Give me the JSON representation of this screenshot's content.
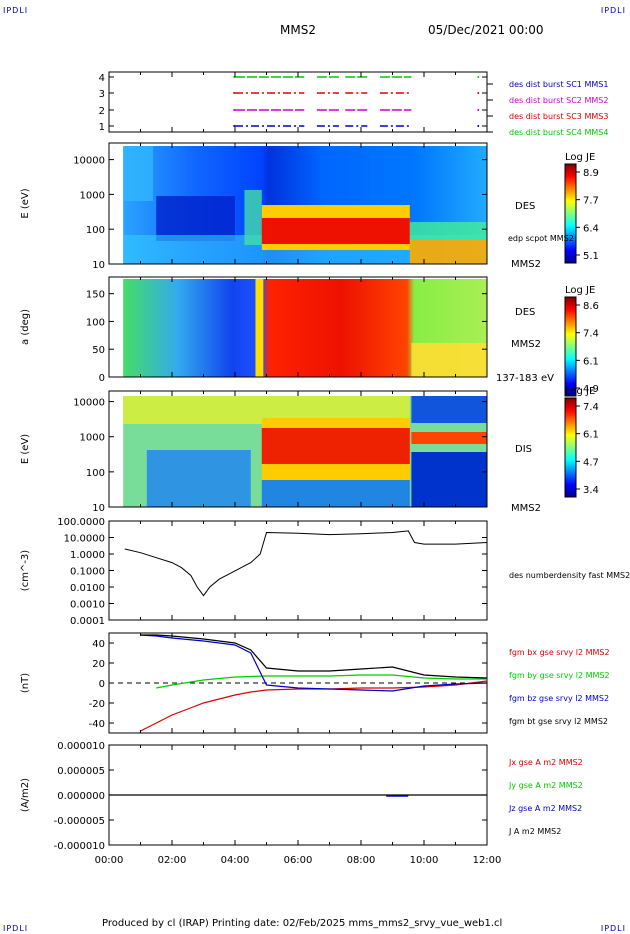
{
  "corners": {
    "tl": "IPDLI",
    "tr": "IPDLI",
    "bl": "IPDLI",
    "br": "IPDLI"
  },
  "header": {
    "spacecraft": "MMS2",
    "datetime": "05/Dec/2021 00:00"
  },
  "footer": {
    "text": "Produced by cl (IRAP)   Printing date: 02/Feb/2025   mms_mms2_srvy_vue_web1.cl"
  },
  "colors": {
    "blue": "#0000cc",
    "magenta": "#cc00cc",
    "red": "#dd0000",
    "green": "#00cc00",
    "black": "#000000"
  },
  "chart_data": [
    {
      "type": "timeline",
      "id": "burst",
      "yticks": [
        "4",
        "3",
        "2",
        "1"
      ],
      "legend": [
        {
          "label": "des dist burst SC1 MMS1",
          "color": "#0000cc"
        },
        {
          "label": "des dist burst SC2 MMS2",
          "color": "#cc00cc"
        },
        {
          "label": "des dist burst SC3 MMS3",
          "color": "#dd0000"
        },
        {
          "label": "des dist burst SC4 MMS4",
          "color": "#00cc00"
        }
      ],
      "segments_hours": [
        [
          4.0,
          6.2
        ],
        [
          6.6,
          7.3
        ],
        [
          7.5,
          8.2
        ],
        [
          8.6,
          9.6
        ]
      ]
    },
    {
      "type": "heatmap",
      "id": "des_energy",
      "ylabel": "E (eV)",
      "yticks": [
        "10000",
        "1000",
        "100",
        "10"
      ],
      "ylim": [
        10,
        30000
      ],
      "side_labels": [
        "DES",
        "edp scpot MMS2",
        "MMS2"
      ],
      "colorbar": {
        "title": "Log JE",
        "ticks": [
          "8.9",
          "7.7",
          "6.4",
          "5.1"
        ],
        "min": 5.1,
        "max": 8.9
      }
    },
    {
      "type": "heatmap",
      "id": "des_pitch",
      "ylabel": "a (deg)",
      "yticks": [
        "150",
        "100",
        "50",
        "0"
      ],
      "ylim": [
        0,
        180
      ],
      "side_labels": [
        "DES",
        "MMS2",
        "137-183 eV"
      ],
      "colorbar": {
        "title": "Log JE",
        "ticks": [
          "8.6",
          "7.4",
          "6.1",
          "4.9"
        ],
        "min": 4.9,
        "max": 8.6
      }
    },
    {
      "type": "heatmap",
      "id": "dis_energy",
      "ylabel": "E (eV)",
      "yticks": [
        "10000",
        "1000",
        "100",
        "10"
      ],
      "ylim": [
        10,
        20000
      ],
      "side_labels": [
        "DIS",
        "MMS2"
      ],
      "colorbar": {
        "title": "Log JE",
        "ticks": [
          "7.4",
          "6.1",
          "4.7",
          "3.4"
        ],
        "min": 3.4,
        "max": 7.4
      }
    },
    {
      "type": "line",
      "id": "density",
      "ylabel": "(cm^-3)",
      "yticks": [
        "100.0000",
        "10.0000",
        "1.0000",
        "0.1000",
        "0.0100",
        "0.0010",
        "0.0001"
      ],
      "ylim": [
        0.0001,
        100
      ],
      "scale": "log",
      "series": [
        {
          "name": "des numberdensity fast MMS2",
          "color": "#000000",
          "x": [
            0.5,
            1.0,
            1.5,
            2.0,
            2.3,
            2.6,
            2.8,
            3.0,
            3.2,
            3.5,
            3.8,
            4.2,
            4.5,
            4.8,
            5.0,
            6.0,
            7.0,
            8.0,
            9.0,
            9.5,
            9.7,
            10.0,
            11.0,
            12.0
          ],
          "y": [
            2.0,
            1.2,
            0.6,
            0.3,
            0.15,
            0.05,
            0.01,
            0.003,
            0.01,
            0.03,
            0.06,
            0.15,
            0.3,
            1.0,
            20,
            18,
            15,
            17,
            20,
            25,
            5,
            4,
            4,
            5
          ]
        }
      ]
    },
    {
      "type": "line",
      "id": "magnetic",
      "ylabel": "(nT)",
      "yticks": [
        "40",
        "20",
        "0",
        "-20",
        "-40"
      ],
      "ylim": [
        -50,
        50
      ],
      "series": [
        {
          "name": "fgm bx gse srvy l2 MMS2",
          "color": "#dd0000",
          "x": [
            1.0,
            1.5,
            2.0,
            2.5,
            3.0,
            3.5,
            4.0,
            4.5,
            5.0,
            6.0,
            7.0,
            8.0,
            9.0,
            10.0,
            11.0,
            12.0
          ],
          "y": [
            -48,
            -40,
            -32,
            -26,
            -20,
            -16,
            -12,
            -9,
            -7,
            -6,
            -6,
            -5,
            -5,
            -4,
            -2,
            2
          ]
        },
        {
          "name": "fgm by gse srvy l2 MMS2",
          "color": "#00cc00",
          "x": [
            1.5,
            2.0,
            3.0,
            4.0,
            5.0,
            6.0,
            7.0,
            8.0,
            9.0,
            10.0,
            11.0,
            12.0
          ],
          "y": [
            -5,
            -2,
            3,
            6,
            7,
            7,
            7,
            8,
            8,
            5,
            4,
            4
          ]
        },
        {
          "name": "fgm bz gse srvy l2 MMS2",
          "color": "#0000cc",
          "x": [
            1.0,
            1.5,
            2.0,
            3.0,
            4.0,
            4.5,
            5.0,
            6.0,
            7.0,
            8.0,
            9.0,
            10.0,
            11.0,
            12.0
          ],
          "y": [
            48,
            47,
            45,
            42,
            38,
            30,
            -2,
            -5,
            -6,
            -7,
            -8,
            -3,
            -1,
            0
          ]
        },
        {
          "name": "fgm bt gse srvy l2 MMS2",
          "color": "#000000",
          "x": [
            1.0,
            1.5,
            2.0,
            3.0,
            4.0,
            4.5,
            5.0,
            6.0,
            7.0,
            8.0,
            9.0,
            10.0,
            11.0,
            12.0
          ],
          "y": [
            48,
            48,
            47,
            44,
            40,
            33,
            15,
            12,
            12,
            14,
            16,
            8,
            6,
            5
          ]
        }
      ]
    },
    {
      "type": "line",
      "id": "current",
      "ylabel": "(A/m2)",
      "yticks": [
        "0.000010",
        "0.000005",
        "0.000000",
        "-0.000005",
        "-0.000010"
      ],
      "ylim": [
        -1e-05,
        1e-05
      ],
      "series": [
        {
          "name": "Jx gse A m2 MMS2",
          "color": "#dd0000"
        },
        {
          "name": "Jy gse A m2 MMS2",
          "color": "#00cc00"
        },
        {
          "name": "Jz gse A m2 MMS2",
          "color": "#0000cc"
        },
        {
          "name": "J A m2 MMS2",
          "color": "#000000"
        }
      ]
    }
  ],
  "xaxis": {
    "ticks": [
      "00:00",
      "02:00",
      "04:00",
      "06:00",
      "08:00",
      "10:00",
      "12:00"
    ],
    "range_hours": [
      0,
      12
    ]
  }
}
